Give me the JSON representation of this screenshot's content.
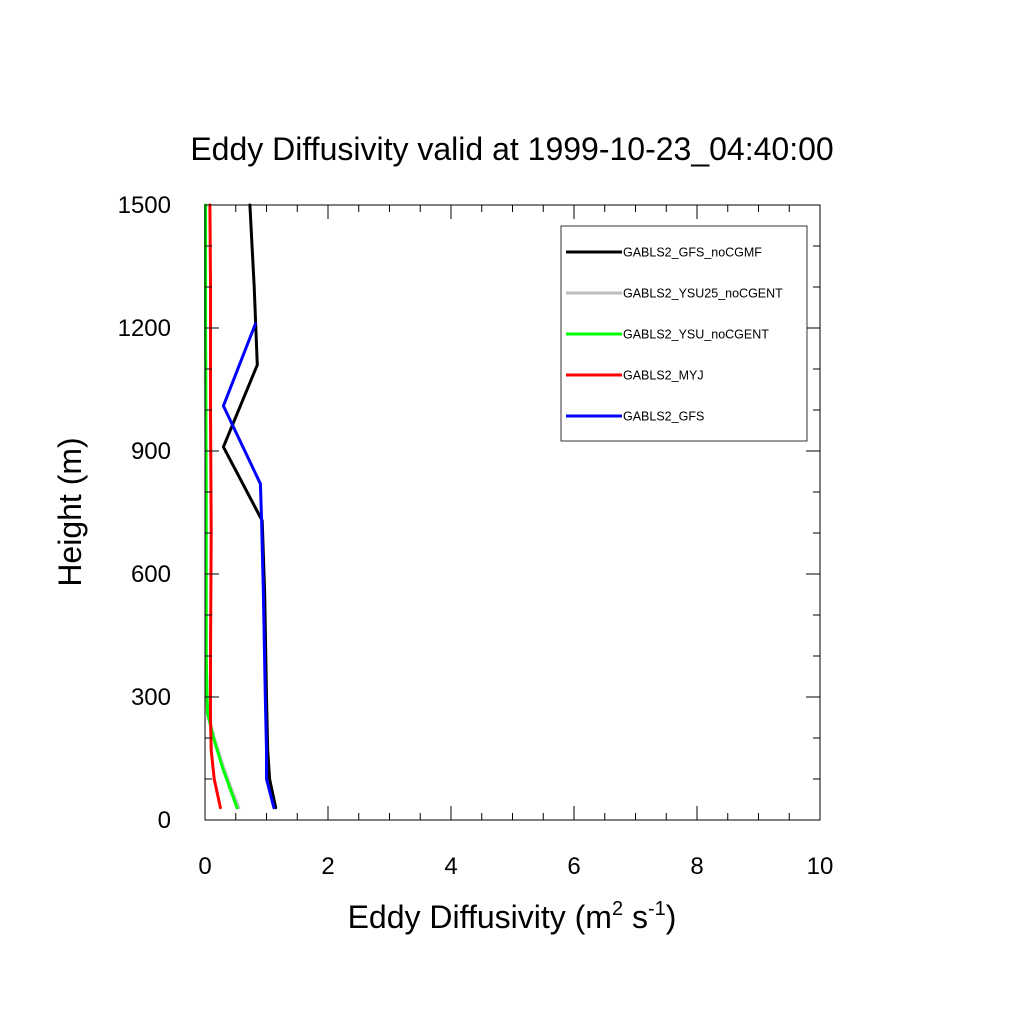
{
  "chart_data": {
    "type": "line",
    "title": "Eddy Diffusivity valid at 1999-10-23_04:40:00",
    "xlabel": {
      "main": "Eddy Diffusivity (m",
      "sup1": "2",
      "mid": " s",
      "sup2": "-1",
      "end": ")"
    },
    "ylabel": "Height (m)",
    "xlim": [
      0,
      10
    ],
    "ylim": [
      0,
      1500
    ],
    "x_ticks": [
      "0",
      "2",
      "4",
      "6",
      "8",
      "10"
    ],
    "y_ticks": [
      "0",
      "300",
      "600",
      "900",
      "1200",
      "1500"
    ],
    "x_tick_values": [
      0,
      2,
      4,
      6,
      8,
      10
    ],
    "y_tick_values": [
      0,
      300,
      600,
      900,
      1200,
      1500
    ],
    "x_minor_step": 0.5,
    "y_minor_step": 100,
    "legend_position": "top-right",
    "series": [
      {
        "name": "GABLS2_GFS_noCGMF",
        "color": "#000000",
        "x": [
          1.15,
          1.05,
          1.02,
          1.0,
          0.97,
          0.93,
          0.3,
          0.85,
          0.8,
          0.73
        ],
        "y": [
          30,
          100,
          170,
          300,
          550,
          730,
          910,
          1110,
          1300,
          1500
        ]
      },
      {
        "name": "GABLS2_YSU25_noCGENT",
        "color": "#bebebe",
        "x": [
          0.55,
          0.42,
          0.3,
          0.15,
          0.04,
          0.02,
          0.02,
          0.01,
          0.01
        ],
        "y": [
          30,
          80,
          130,
          200,
          260,
          400,
          800,
          1200,
          1500
        ]
      },
      {
        "name": "GABLS2_YSU_noCGENT",
        "color": "#00ff00",
        "x": [
          0.52,
          0.4,
          0.28,
          0.14,
          0.04,
          0.02,
          0.02,
          0.01,
          0.01
        ],
        "y": [
          30,
          80,
          130,
          200,
          260,
          400,
          800,
          1200,
          1500
        ]
      },
      {
        "name": "GABLS2_MYJ",
        "color": "#ff0000",
        "x": [
          0.25,
          0.15,
          0.1,
          0.09,
          0.09,
          0.1,
          0.09,
          0.09,
          0.08
        ],
        "y": [
          30,
          100,
          170,
          250,
          400,
          700,
          1000,
          1300,
          1500
        ]
      },
      {
        "name": "GABLS2_GFS",
        "color": "#0000ff",
        "x": [
          1.12,
          1.0,
          1.0,
          0.98,
          0.95,
          0.92,
          0.9,
          0.3,
          0.82
        ],
        "y": [
          30,
          100,
          170,
          300,
          550,
          730,
          820,
          1010,
          1210
        ]
      }
    ]
  }
}
